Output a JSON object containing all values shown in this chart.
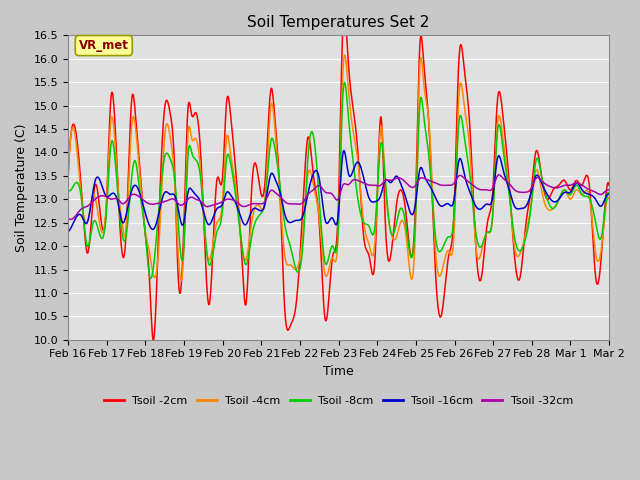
{
  "title": "Soil Temperatures Set 2",
  "xlabel": "Time",
  "ylabel": "Soil Temperature (C)",
  "ylim": [
    10.0,
    16.5
  ],
  "yticks": [
    10.0,
    10.5,
    11.0,
    11.5,
    12.0,
    12.5,
    13.0,
    13.5,
    14.0,
    14.5,
    15.0,
    15.5,
    16.0,
    16.5
  ],
  "bg_color": "#e0e0e0",
  "legend_label": "VR_met",
  "series_colors": {
    "Tsoil -2cm": "#ff0000",
    "Tsoil -4cm": "#ff8800",
    "Tsoil -8cm": "#00cc00",
    "Tsoil -16cm": "#0000cc",
    "Tsoil -32cm": "#aa00aa"
  },
  "xtick_labels": [
    "Feb 16",
    "Feb 17",
    "Feb 18",
    "Feb 19",
    "Feb 20",
    "Feb 21",
    "Feb 22",
    "Feb 23",
    "Feb 24",
    "Feb 25",
    "Feb 26",
    "Feb 27",
    "Feb 28",
    "Mar 1",
    "Mar 2"
  ],
  "t2_keypoints": [
    [
      0.0,
      13.5
    ],
    [
      0.15,
      14.6
    ],
    [
      0.4,
      12.6
    ],
    [
      0.5,
      11.85
    ],
    [
      0.7,
      13.3
    ],
    [
      1.0,
      13.0
    ],
    [
      1.1,
      15.05
    ],
    [
      1.3,
      13.1
    ],
    [
      1.4,
      11.85
    ],
    [
      1.5,
      12.25
    ],
    [
      1.65,
      15.15
    ],
    [
      1.75,
      14.75
    ],
    [
      1.85,
      13.75
    ],
    [
      2.0,
      12.25
    ],
    [
      2.1,
      11.4
    ],
    [
      2.2,
      10.0
    ],
    [
      2.35,
      12.5
    ],
    [
      2.5,
      14.95
    ],
    [
      2.65,
      14.8
    ],
    [
      2.75,
      13.8
    ],
    [
      2.85,
      11.35
    ],
    [
      3.0,
      12.5
    ],
    [
      3.1,
      14.9
    ],
    [
      3.2,
      14.8
    ],
    [
      3.3,
      14.85
    ],
    [
      3.45,
      13.7
    ],
    [
      3.55,
      11.8
    ],
    [
      3.65,
      10.75
    ],
    [
      3.85,
      13.4
    ],
    [
      4.0,
      13.5
    ],
    [
      4.1,
      15.05
    ],
    [
      4.2,
      14.85
    ],
    [
      4.35,
      13.5
    ],
    [
      4.5,
      11.7
    ],
    [
      4.6,
      10.75
    ],
    [
      4.75,
      13.2
    ],
    [
      5.0,
      13.1
    ],
    [
      5.1,
      13.4
    ],
    [
      5.25,
      15.35
    ],
    [
      5.35,
      14.75
    ],
    [
      5.5,
      12.8
    ],
    [
      5.6,
      10.75
    ],
    [
      5.75,
      10.3
    ],
    [
      5.9,
      10.75
    ],
    [
      6.1,
      13.2
    ],
    [
      6.2,
      14.3
    ],
    [
      6.35,
      13.5
    ],
    [
      6.5,
      12.5
    ],
    [
      6.65,
      10.45
    ],
    [
      6.85,
      11.8
    ],
    [
      7.0,
      13.0
    ],
    [
      7.1,
      16.45
    ],
    [
      7.25,
      15.95
    ],
    [
      7.35,
      15.1
    ],
    [
      7.5,
      14.0
    ],
    [
      7.65,
      12.2
    ],
    [
      7.8,
      11.75
    ],
    [
      7.95,
      11.85
    ],
    [
      8.1,
      14.75
    ],
    [
      8.2,
      12.7
    ],
    [
      8.35,
      11.8
    ],
    [
      8.5,
      12.9
    ],
    [
      8.6,
      13.2
    ],
    [
      8.75,
      12.65
    ],
    [
      9.0,
      13.2
    ],
    [
      9.1,
      16.25
    ],
    [
      9.2,
      15.95
    ],
    [
      9.35,
      14.4
    ],
    [
      9.5,
      11.55
    ],
    [
      9.65,
      10.5
    ],
    [
      9.85,
      11.8
    ],
    [
      10.0,
      13.0
    ],
    [
      10.1,
      15.75
    ],
    [
      10.25,
      15.8
    ],
    [
      10.4,
      14.5
    ],
    [
      10.55,
      12.0
    ],
    [
      10.7,
      11.35
    ],
    [
      10.85,
      12.5
    ],
    [
      11.0,
      13.3
    ],
    [
      11.1,
      15.0
    ],
    [
      11.25,
      14.8
    ],
    [
      11.4,
      13.5
    ],
    [
      11.55,
      11.8
    ],
    [
      11.7,
      11.35
    ],
    [
      11.85,
      12.5
    ],
    [
      12.0,
      13.3
    ],
    [
      12.1,
      14.0
    ],
    [
      12.25,
      13.5
    ],
    [
      12.4,
      13.0
    ],
    [
      12.55,
      13.2
    ],
    [
      12.7,
      13.3
    ],
    [
      12.85,
      13.4
    ],
    [
      13.0,
      13.2
    ],
    [
      13.15,
      13.4
    ],
    [
      13.3,
      13.3
    ],
    [
      13.5,
      13.2
    ],
    [
      13.65,
      11.35
    ],
    [
      13.8,
      11.8
    ],
    [
      13.95,
      13.3
    ],
    [
      14.0,
      13.3
    ]
  ],
  "t4_keypoints": [
    [
      0.0,
      13.4
    ],
    [
      0.15,
      14.5
    ],
    [
      0.35,
      13.0
    ],
    [
      0.5,
      12.5
    ],
    [
      0.65,
      13.1
    ],
    [
      1.0,
      13.0
    ],
    [
      1.1,
      14.6
    ],
    [
      1.3,
      13.2
    ],
    [
      1.4,
      12.5
    ],
    [
      1.5,
      12.3
    ],
    [
      1.65,
      14.6
    ],
    [
      1.75,
      14.5
    ],
    [
      1.85,
      13.6
    ],
    [
      2.0,
      12.3
    ],
    [
      2.1,
      11.9
    ],
    [
      2.2,
      11.4
    ],
    [
      2.35,
      12.0
    ],
    [
      2.5,
      14.35
    ],
    [
      2.65,
      14.3
    ],
    [
      2.75,
      13.5
    ],
    [
      2.85,
      11.85
    ],
    [
      3.0,
      12.0
    ],
    [
      3.1,
      14.35
    ],
    [
      3.2,
      14.3
    ],
    [
      3.3,
      14.3
    ],
    [
      3.45,
      13.4
    ],
    [
      3.55,
      12.2
    ],
    [
      3.65,
      11.7
    ],
    [
      3.85,
      12.5
    ],
    [
      4.0,
      13.0
    ],
    [
      4.1,
      14.3
    ],
    [
      4.2,
      14.0
    ],
    [
      4.35,
      13.2
    ],
    [
      4.5,
      12.0
    ],
    [
      4.6,
      11.7
    ],
    [
      4.75,
      12.5
    ],
    [
      5.0,
      12.8
    ],
    [
      5.1,
      13.0
    ],
    [
      5.25,
      15.0
    ],
    [
      5.35,
      14.55
    ],
    [
      5.5,
      12.9
    ],
    [
      5.6,
      11.85
    ],
    [
      5.75,
      11.6
    ],
    [
      5.9,
      11.5
    ],
    [
      6.1,
      12.5
    ],
    [
      6.2,
      13.5
    ],
    [
      6.35,
      13.3
    ],
    [
      6.5,
      12.6
    ],
    [
      6.65,
      11.4
    ],
    [
      6.85,
      11.75
    ],
    [
      7.0,
      12.5
    ],
    [
      7.1,
      15.5
    ],
    [
      7.25,
      15.4
    ],
    [
      7.35,
      14.6
    ],
    [
      7.5,
      13.8
    ],
    [
      7.65,
      12.5
    ],
    [
      7.8,
      12.0
    ],
    [
      7.95,
      12.2
    ],
    [
      8.1,
      14.55
    ],
    [
      8.2,
      13.5
    ],
    [
      8.35,
      12.3
    ],
    [
      8.5,
      12.2
    ],
    [
      8.6,
      12.5
    ],
    [
      8.75,
      12.2
    ],
    [
      9.0,
      12.7
    ],
    [
      9.1,
      15.8
    ],
    [
      9.2,
      15.5
    ],
    [
      9.35,
      14.5
    ],
    [
      9.5,
      12.0
    ],
    [
      9.65,
      11.4
    ],
    [
      9.85,
      11.9
    ],
    [
      10.0,
      12.5
    ],
    [
      10.1,
      15.0
    ],
    [
      10.25,
      15.0
    ],
    [
      10.4,
      14.0
    ],
    [
      10.55,
      12.0
    ],
    [
      10.7,
      11.9
    ],
    [
      10.85,
      12.3
    ],
    [
      11.0,
      12.8
    ],
    [
      11.1,
      14.5
    ],
    [
      11.25,
      14.3
    ],
    [
      11.4,
      13.3
    ],
    [
      11.55,
      12.0
    ],
    [
      11.7,
      11.85
    ],
    [
      11.85,
      12.3
    ],
    [
      12.0,
      13.0
    ],
    [
      12.1,
      13.6
    ],
    [
      12.25,
      13.2
    ],
    [
      12.4,
      12.8
    ],
    [
      12.55,
      12.8
    ],
    [
      12.7,
      13.0
    ],
    [
      12.85,
      13.2
    ],
    [
      13.0,
      13.0
    ],
    [
      13.15,
      13.2
    ],
    [
      13.3,
      13.1
    ],
    [
      13.5,
      13.0
    ],
    [
      13.65,
      11.85
    ],
    [
      13.8,
      11.95
    ],
    [
      13.95,
      13.0
    ],
    [
      14.0,
      13.0
    ]
  ],
  "t8_keypoints": [
    [
      0.0,
      13.2
    ],
    [
      0.2,
      13.35
    ],
    [
      0.35,
      13.0
    ],
    [
      0.5,
      12.0
    ],
    [
      0.65,
      12.5
    ],
    [
      1.0,
      12.8
    ],
    [
      1.1,
      14.1
    ],
    [
      1.3,
      13.0
    ],
    [
      1.4,
      12.25
    ],
    [
      1.5,
      12.2
    ],
    [
      1.65,
      13.5
    ],
    [
      1.75,
      13.8
    ],
    [
      1.85,
      13.2
    ],
    [
      2.0,
      12.25
    ],
    [
      2.1,
      11.4
    ],
    [
      2.25,
      11.85
    ],
    [
      2.5,
      13.9
    ],
    [
      2.65,
      13.85
    ],
    [
      2.75,
      13.5
    ],
    [
      2.85,
      12.5
    ],
    [
      3.0,
      12.0
    ],
    [
      3.1,
      13.9
    ],
    [
      3.2,
      14.0
    ],
    [
      3.3,
      13.85
    ],
    [
      3.45,
      13.3
    ],
    [
      3.55,
      12.2
    ],
    [
      3.65,
      11.6
    ],
    [
      3.85,
      12.3
    ],
    [
      4.0,
      12.8
    ],
    [
      4.1,
      13.85
    ],
    [
      4.2,
      13.8
    ],
    [
      4.35,
      13.0
    ],
    [
      4.5,
      12.0
    ],
    [
      4.6,
      11.6
    ],
    [
      4.75,
      12.2
    ],
    [
      5.0,
      12.7
    ],
    [
      5.1,
      13.0
    ],
    [
      5.25,
      14.25
    ],
    [
      5.35,
      14.1
    ],
    [
      5.5,
      13.2
    ],
    [
      5.6,
      12.5
    ],
    [
      5.75,
      12.0
    ],
    [
      5.9,
      11.5
    ],
    [
      6.1,
      12.3
    ],
    [
      6.2,
      13.8
    ],
    [
      6.35,
      14.35
    ],
    [
      6.5,
      13.0
    ],
    [
      6.65,
      11.65
    ],
    [
      6.85,
      12.0
    ],
    [
      7.0,
      12.5
    ],
    [
      7.1,
      15.05
    ],
    [
      7.25,
      14.8
    ],
    [
      7.35,
      14.0
    ],
    [
      7.5,
      13.0
    ],
    [
      7.65,
      12.5
    ],
    [
      7.8,
      12.4
    ],
    [
      7.95,
      12.5
    ],
    [
      8.1,
      14.2
    ],
    [
      8.2,
      13.5
    ],
    [
      8.35,
      12.3
    ],
    [
      8.5,
      12.5
    ],
    [
      8.6,
      12.8
    ],
    [
      8.75,
      12.4
    ],
    [
      9.0,
      12.8
    ],
    [
      9.1,
      15.0
    ],
    [
      9.2,
      14.8
    ],
    [
      9.35,
      13.8
    ],
    [
      9.5,
      12.25
    ],
    [
      9.65,
      11.9
    ],
    [
      9.85,
      12.2
    ],
    [
      10.0,
      12.8
    ],
    [
      10.1,
      14.5
    ],
    [
      10.25,
      14.35
    ],
    [
      10.4,
      13.5
    ],
    [
      10.55,
      12.3
    ],
    [
      10.7,
      12.0
    ],
    [
      10.85,
      12.3
    ],
    [
      11.0,
      12.8
    ],
    [
      11.1,
      14.35
    ],
    [
      11.25,
      14.1
    ],
    [
      11.4,
      13.2
    ],
    [
      11.55,
      12.2
    ],
    [
      11.7,
      11.9
    ],
    [
      11.85,
      12.2
    ],
    [
      12.0,
      13.0
    ],
    [
      12.1,
      13.8
    ],
    [
      12.25,
      13.5
    ],
    [
      12.4,
      13.0
    ],
    [
      12.55,
      12.8
    ],
    [
      12.7,
      13.0
    ],
    [
      12.85,
      13.2
    ],
    [
      13.0,
      13.1
    ],
    [
      13.15,
      13.3
    ],
    [
      13.3,
      13.1
    ],
    [
      13.5,
      13.0
    ],
    [
      13.65,
      12.5
    ],
    [
      13.8,
      12.2
    ],
    [
      13.95,
      13.1
    ],
    [
      14.0,
      13.1
    ]
  ],
  "t16_keypoints": [
    [
      0.0,
      12.3
    ],
    [
      0.2,
      12.6
    ],
    [
      0.35,
      12.65
    ],
    [
      0.5,
      12.5
    ],
    [
      0.7,
      13.4
    ],
    [
      1.0,
      13.05
    ],
    [
      1.1,
      13.1
    ],
    [
      1.3,
      12.9
    ],
    [
      1.4,
      12.5
    ],
    [
      1.5,
      12.65
    ],
    [
      1.65,
      13.2
    ],
    [
      1.75,
      13.3
    ],
    [
      2.0,
      12.7
    ],
    [
      2.1,
      12.45
    ],
    [
      2.25,
      12.4
    ],
    [
      2.5,
      13.15
    ],
    [
      2.65,
      13.1
    ],
    [
      2.75,
      13.1
    ],
    [
      2.85,
      12.8
    ],
    [
      3.0,
      12.5
    ],
    [
      3.1,
      13.15
    ],
    [
      3.2,
      13.2
    ],
    [
      3.3,
      13.1
    ],
    [
      3.45,
      12.9
    ],
    [
      3.55,
      12.6
    ],
    [
      3.65,
      12.45
    ],
    [
      3.85,
      12.8
    ],
    [
      4.0,
      12.9
    ],
    [
      4.1,
      13.15
    ],
    [
      4.2,
      13.1
    ],
    [
      4.35,
      12.9
    ],
    [
      4.5,
      12.55
    ],
    [
      4.6,
      12.45
    ],
    [
      4.75,
      12.75
    ],
    [
      5.0,
      12.75
    ],
    [
      5.1,
      12.9
    ],
    [
      5.25,
      13.55
    ],
    [
      5.35,
      13.45
    ],
    [
      5.5,
      13.1
    ],
    [
      5.6,
      12.7
    ],
    [
      5.75,
      12.5
    ],
    [
      5.9,
      12.55
    ],
    [
      6.1,
      12.7
    ],
    [
      6.2,
      13.1
    ],
    [
      6.35,
      13.55
    ],
    [
      6.5,
      13.45
    ],
    [
      6.65,
      12.55
    ],
    [
      6.85,
      12.6
    ],
    [
      7.0,
      12.7
    ],
    [
      7.1,
      13.95
    ],
    [
      7.25,
      13.55
    ],
    [
      7.35,
      13.55
    ],
    [
      7.5,
      13.8
    ],
    [
      7.65,
      13.45
    ],
    [
      7.8,
      13.0
    ],
    [
      7.95,
      12.95
    ],
    [
      8.1,
      13.1
    ],
    [
      8.2,
      13.4
    ],
    [
      8.35,
      13.35
    ],
    [
      8.5,
      13.5
    ],
    [
      8.6,
      13.35
    ],
    [
      8.75,
      13.0
    ],
    [
      9.0,
      12.95
    ],
    [
      9.1,
      13.65
    ],
    [
      9.2,
      13.55
    ],
    [
      9.35,
      13.3
    ],
    [
      9.5,
      13.05
    ],
    [
      9.65,
      12.85
    ],
    [
      9.85,
      12.9
    ],
    [
      10.0,
      13.05
    ],
    [
      10.1,
      13.8
    ],
    [
      10.25,
      13.55
    ],
    [
      10.4,
      13.15
    ],
    [
      10.55,
      12.85
    ],
    [
      10.7,
      12.8
    ],
    [
      10.85,
      12.9
    ],
    [
      11.0,
      13.1
    ],
    [
      11.1,
      13.85
    ],
    [
      11.25,
      13.65
    ],
    [
      11.4,
      13.25
    ],
    [
      11.55,
      12.85
    ],
    [
      11.7,
      12.8
    ],
    [
      11.85,
      12.85
    ],
    [
      12.0,
      13.2
    ],
    [
      12.1,
      13.5
    ],
    [
      12.25,
      13.35
    ],
    [
      12.4,
      13.1
    ],
    [
      12.55,
      12.95
    ],
    [
      12.7,
      13.0
    ],
    [
      12.85,
      13.15
    ],
    [
      13.0,
      13.15
    ],
    [
      13.15,
      13.35
    ],
    [
      13.3,
      13.2
    ],
    [
      13.5,
      13.1
    ],
    [
      13.65,
      13.0
    ],
    [
      13.8,
      12.85
    ],
    [
      13.95,
      13.1
    ],
    [
      14.0,
      13.1
    ]
  ],
  "t32_keypoints": [
    [
      0.0,
      12.6
    ],
    [
      0.2,
      12.65
    ],
    [
      0.35,
      12.8
    ],
    [
      0.5,
      12.85
    ],
    [
      0.7,
      13.0
    ],
    [
      1.0,
      13.05
    ],
    [
      1.1,
      13.0
    ],
    [
      1.3,
      13.0
    ],
    [
      1.4,
      12.9
    ],
    [
      1.5,
      12.95
    ],
    [
      1.65,
      13.1
    ],
    [
      1.75,
      13.1
    ],
    [
      2.0,
      12.95
    ],
    [
      2.1,
      12.9
    ],
    [
      2.25,
      12.9
    ],
    [
      2.5,
      12.95
    ],
    [
      2.65,
      13.0
    ],
    [
      2.75,
      13.0
    ],
    [
      2.85,
      12.9
    ],
    [
      3.0,
      12.9
    ],
    [
      3.1,
      13.0
    ],
    [
      3.2,
      13.05
    ],
    [
      3.3,
      13.0
    ],
    [
      3.45,
      12.95
    ],
    [
      3.55,
      12.85
    ],
    [
      3.65,
      12.85
    ],
    [
      3.85,
      12.9
    ],
    [
      4.0,
      12.95
    ],
    [
      4.1,
      13.0
    ],
    [
      4.2,
      13.0
    ],
    [
      4.35,
      12.95
    ],
    [
      4.5,
      12.85
    ],
    [
      4.6,
      12.85
    ],
    [
      4.75,
      12.9
    ],
    [
      5.0,
      12.9
    ],
    [
      5.1,
      12.95
    ],
    [
      5.25,
      13.2
    ],
    [
      5.35,
      13.15
    ],
    [
      5.5,
      13.05
    ],
    [
      5.6,
      12.95
    ],
    [
      5.75,
      12.9
    ],
    [
      5.9,
      12.9
    ],
    [
      6.1,
      12.95
    ],
    [
      6.2,
      13.1
    ],
    [
      6.35,
      13.2
    ],
    [
      6.5,
      13.3
    ],
    [
      6.65,
      13.15
    ],
    [
      6.85,
      13.1
    ],
    [
      7.0,
      13.0
    ],
    [
      7.1,
      13.3
    ],
    [
      7.25,
      13.3
    ],
    [
      7.35,
      13.4
    ],
    [
      7.5,
      13.4
    ],
    [
      7.65,
      13.35
    ],
    [
      7.8,
      13.3
    ],
    [
      7.95,
      13.3
    ],
    [
      8.1,
      13.3
    ],
    [
      8.2,
      13.4
    ],
    [
      8.35,
      13.4
    ],
    [
      8.5,
      13.45
    ],
    [
      8.6,
      13.45
    ],
    [
      8.75,
      13.35
    ],
    [
      9.0,
      13.3
    ],
    [
      9.1,
      13.45
    ],
    [
      9.2,
      13.45
    ],
    [
      9.35,
      13.4
    ],
    [
      9.5,
      13.35
    ],
    [
      9.65,
      13.3
    ],
    [
      9.85,
      13.3
    ],
    [
      10.0,
      13.35
    ],
    [
      10.1,
      13.5
    ],
    [
      10.25,
      13.45
    ],
    [
      10.4,
      13.35
    ],
    [
      10.55,
      13.25
    ],
    [
      10.7,
      13.2
    ],
    [
      10.85,
      13.2
    ],
    [
      11.0,
      13.25
    ],
    [
      11.1,
      13.5
    ],
    [
      11.25,
      13.45
    ],
    [
      11.4,
      13.35
    ],
    [
      11.55,
      13.2
    ],
    [
      11.7,
      13.15
    ],
    [
      11.85,
      13.15
    ],
    [
      12.0,
      13.25
    ],
    [
      12.1,
      13.45
    ],
    [
      12.25,
      13.4
    ],
    [
      12.4,
      13.3
    ],
    [
      12.55,
      13.25
    ],
    [
      12.7,
      13.25
    ],
    [
      12.85,
      13.3
    ],
    [
      13.0,
      13.3
    ],
    [
      13.15,
      13.35
    ],
    [
      13.3,
      13.3
    ],
    [
      13.5,
      13.2
    ],
    [
      13.65,
      13.15
    ],
    [
      13.8,
      13.1
    ],
    [
      13.95,
      13.2
    ],
    [
      14.0,
      13.2
    ]
  ]
}
